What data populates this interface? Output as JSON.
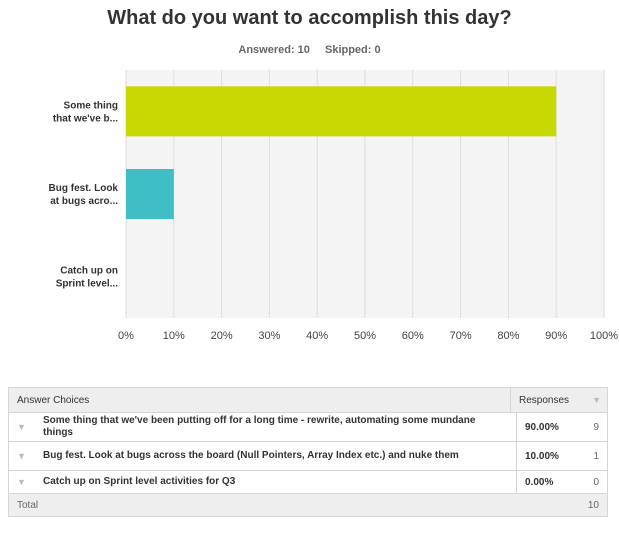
{
  "title": "What do you want to accomplish this day?",
  "answered_label": "Answered: 10",
  "skipped_label": "Skipped: 0",
  "colors": {
    "bar1": "#c8d800",
    "bar2": "#3fbec6",
    "plot_bg": "#f4f4f4",
    "grid": "#dddddd"
  },
  "chart_data": {
    "type": "bar",
    "orientation": "horizontal",
    "categories": [
      [
        "Some thing",
        "that we've b..."
      ],
      [
        "Bug fest. Look",
        "at bugs acro..."
      ],
      [
        "Catch up on",
        "Sprint level..."
      ]
    ],
    "values": [
      90,
      10,
      0
    ],
    "xlim": [
      0,
      100
    ],
    "xticks": [
      "0%",
      "10%",
      "20%",
      "30%",
      "40%",
      "50%",
      "60%",
      "70%",
      "80%",
      "90%",
      "100%"
    ],
    "grid": true
  },
  "table": {
    "header": {
      "choice": "Answer Choices",
      "responses": "Responses"
    },
    "rows": [
      {
        "choice": "Some thing that we've been putting off for a long time - rewrite, automating some mundane things",
        "pct": "90.00%",
        "count": "9"
      },
      {
        "choice": "Bug fest. Look at bugs across the board (Null Pointers, Array Index etc.) and nuke them",
        "pct": "10.00%",
        "count": "1"
      },
      {
        "choice": "Catch up on Sprint level activities for Q3",
        "pct": "0.00%",
        "count": "0"
      }
    ],
    "total_label": "Total",
    "total_value": "10"
  }
}
